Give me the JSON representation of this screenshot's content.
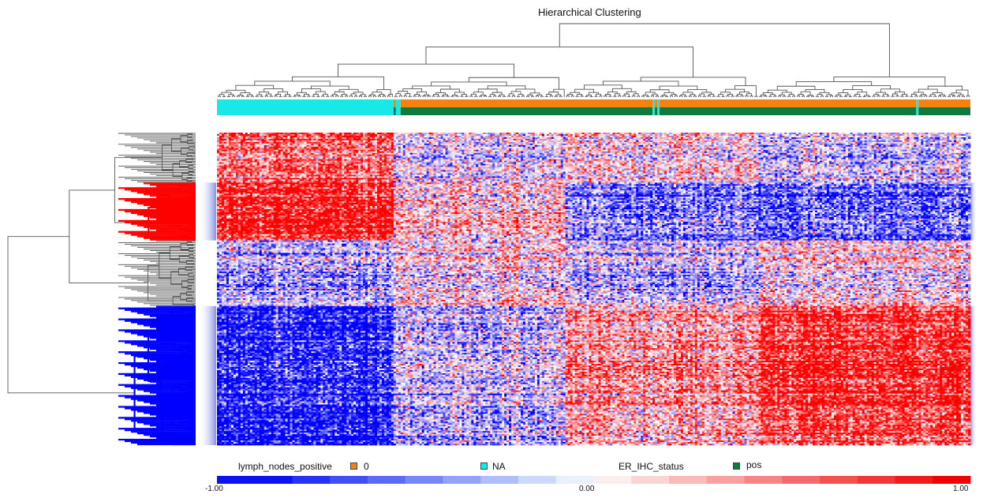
{
  "chart_data": {
    "type": "heatmap",
    "title": "Hierarchical Clustering",
    "n_columns": 320,
    "n_rows": 200,
    "value_range": [
      -1.0,
      1.0
    ],
    "colormap": {
      "low": "#0000ff",
      "mid": "#ffffff",
      "high": "#ff0000"
    },
    "row_clusters": [
      {
        "rows": [
          0,
          31
        ],
        "color": "#555555"
      },
      {
        "rows": [
          32,
          68
        ],
        "color": "#ff0000",
        "highlight": true
      },
      {
        "rows": [
          69,
          110
        ],
        "color": "#555555"
      },
      {
        "rows": [
          111,
          199
        ],
        "color": "#0000ff",
        "highlight": true
      }
    ],
    "column_annotations": [
      {
        "name": "lymph_nodes_positive",
        "segments": [
          {
            "from": 0,
            "to": 74,
            "value": "NA"
          },
          {
            "from": 75,
            "to": 75,
            "value": "0"
          },
          {
            "from": 76,
            "to": 77,
            "value": "NA"
          },
          {
            "from": 78,
            "to": 184,
            "value": "0"
          },
          {
            "from": 185,
            "to": 185,
            "value": "NA"
          },
          {
            "from": 186,
            "to": 186,
            "value": "0"
          },
          {
            "from": 187,
            "to": 187,
            "value": "NA"
          },
          {
            "from": 188,
            "to": 296,
            "value": "0"
          },
          {
            "from": 297,
            "to": 297,
            "value": "NA"
          },
          {
            "from": 298,
            "to": 319,
            "value": "0"
          }
        ]
      },
      {
        "name": "ER_IHC_status",
        "segments": [
          {
            "from": 0,
            "to": 74,
            "value": "NA"
          },
          {
            "from": 75,
            "to": 75,
            "value": "pos"
          },
          {
            "from": 76,
            "to": 77,
            "value": "NA"
          },
          {
            "from": 78,
            "to": 184,
            "value": "pos"
          },
          {
            "from": 185,
            "to": 185,
            "value": "NA"
          },
          {
            "from": 186,
            "to": 186,
            "value": "pos"
          },
          {
            "from": 187,
            "to": 187,
            "value": "NA"
          },
          {
            "from": 188,
            "to": 296,
            "value": "pos"
          },
          {
            "from": 297,
            "to": 297,
            "value": "NA"
          },
          {
            "from": 298,
            "to": 319,
            "value": "pos"
          }
        ]
      }
    ]
  },
  "legend": {
    "items": [
      {
        "label": "lymph_nodes_positive",
        "type": "header"
      },
      {
        "label": "0",
        "color": "#f5820f",
        "type": "entry"
      },
      {
        "label": "NA",
        "color": "#19e8e8",
        "type": "entry"
      },
      {
        "label": "ER_IHC_status",
        "type": "header"
      },
      {
        "label": "pos",
        "color": "#0f7a3d",
        "type": "entry"
      }
    ]
  },
  "colorbar": {
    "ticks": [
      "-1.00",
      "0.00",
      "1.00"
    ],
    "colors": [
      "#0a14f0",
      "#0a14f0",
      "#2634f2",
      "#4150f4",
      "#5c6cf5",
      "#7888f7",
      "#94a3f9",
      "#afbffb",
      "#cbdafc",
      "#eaeffd",
      "#fdeeee",
      "#fcd4d4",
      "#fbbaba",
      "#f9a0a0",
      "#f78585",
      "#f56b6b",
      "#f45151",
      "#f23737",
      "#f01d1d",
      "#ee0505"
    ]
  },
  "colors": {
    "na": "#19e8e8",
    "zero": "#f5820f",
    "pos": "#0f7a3d",
    "tree": "#555555"
  }
}
